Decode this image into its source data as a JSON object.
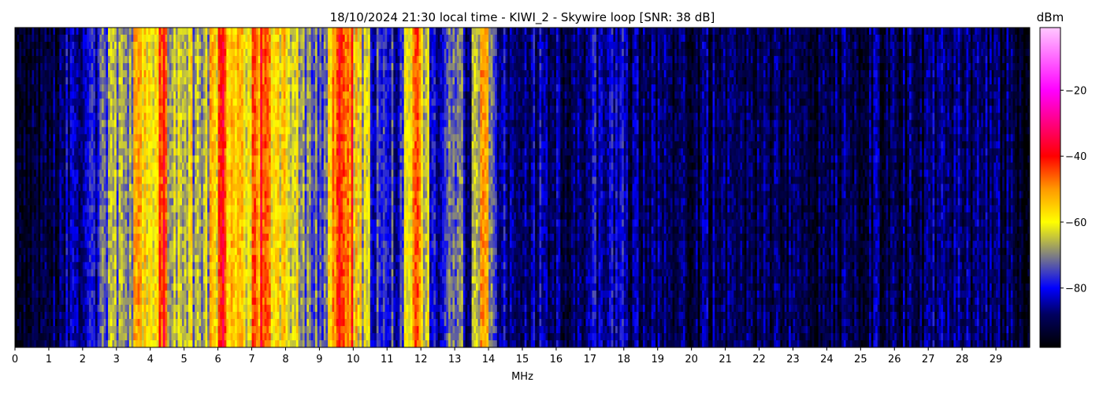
{
  "chart_data": {
    "type": "heatmap",
    "title": "18/10/2024 21:30 local time - KIWI_2 - Skywire loop [SNR: 38 dB]",
    "xlabel": "MHz",
    "xlim": [
      0,
      30
    ],
    "xticks": [
      "0",
      "1",
      "2",
      "3",
      "4",
      "5",
      "6",
      "7",
      "8",
      "9",
      "10",
      "11",
      "12",
      "13",
      "14",
      "15",
      "16",
      "17",
      "18",
      "19",
      "20",
      "21",
      "22",
      "23",
      "24",
      "25",
      "26",
      "27",
      "28",
      "29"
    ],
    "colorbar": {
      "label": "dBm",
      "range": [
        -98,
        -1
      ],
      "ticks": [
        "−20",
        "−40",
        "−60",
        "−80"
      ],
      "tick_values": [
        -20,
        -40,
        -60,
        -80
      ],
      "colormap": [
        {
          "v": -98,
          "c": "#000000"
        },
        {
          "v": -88,
          "c": "#000060"
        },
        {
          "v": -80,
          "c": "#0000ff"
        },
        {
          "v": -70,
          "c": "#808080"
        },
        {
          "v": -60,
          "c": "#ffff00"
        },
        {
          "v": -50,
          "c": "#ff9900"
        },
        {
          "v": -40,
          "c": "#ff0000"
        },
        {
          "v": -20,
          "c": "#ff00ff"
        },
        {
          "v": -1,
          "c": "#ffc8ff"
        }
      ]
    },
    "bin_width_mhz": 0.25,
    "mean_dbm_per_bin": [
      -92,
      -92,
      -93,
      -93,
      -92,
      -91,
      -84,
      -84,
      -80,
      -82,
      -72,
      -66,
      -70,
      -66,
      -56,
      -58,
      -60,
      -44,
      -62,
      -66,
      -62,
      -68,
      -66,
      -56,
      -42,
      -54,
      -56,
      -58,
      -50,
      -42,
      -54,
      -58,
      -66,
      -64,
      -70,
      -72,
      -72,
      -54,
      -44,
      -46,
      -58,
      -66,
      -78,
      -78,
      -78,
      -80,
      -66,
      -46,
      -64,
      -84,
      -82,
      -72,
      -68,
      -84,
      -70,
      -50,
      -74,
      -82,
      -86,
      -86,
      -86,
      -84,
      -82,
      -86,
      -87,
      -87,
      -87,
      -86,
      -84,
      -84,
      -84,
      -82,
      -89,
      -89,
      -89,
      -89,
      -90,
      -90,
      -90,
      -90,
      -89,
      -89,
      -89,
      -89,
      -88,
      -89,
      -90,
      -90,
      -90,
      -90,
      -90,
      -90,
      -90,
      -90,
      -91,
      -90,
      -90,
      -90,
      -90,
      -91,
      -90,
      -89,
      -90,
      -90,
      -90,
      -90,
      -91,
      -90,
      -86,
      -87,
      -88,
      -86,
      -88,
      -88,
      -89,
      -90,
      -91,
      -91,
      -92,
      -94
    ]
  }
}
